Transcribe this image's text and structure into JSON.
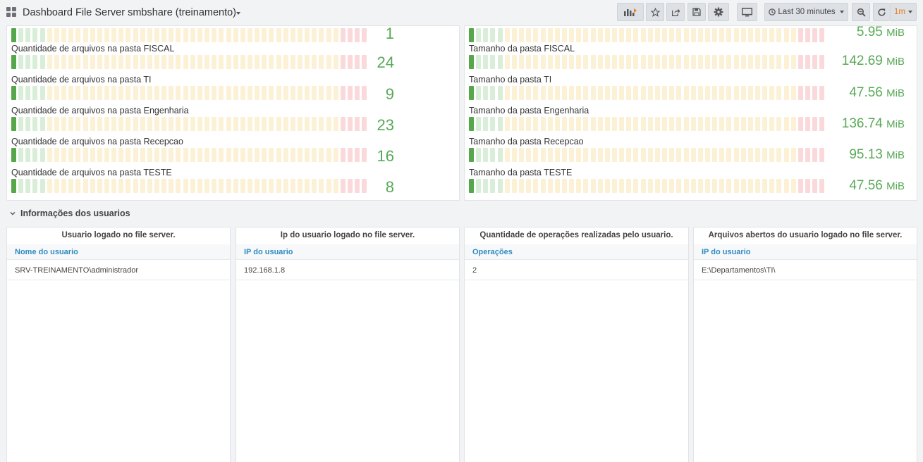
{
  "header": {
    "title": "Dashboard File Server smbshare (treinamento)",
    "time_range": "Last 30 minutes",
    "refresh_interval": "1m",
    "icons": [
      "apps-icon",
      "add-panel-icon",
      "star-icon",
      "share-icon",
      "save-icon",
      "settings-icon",
      "tv-mode-icon",
      "clock-icon",
      "zoom-out-icon",
      "refresh-icon"
    ]
  },
  "colors": {
    "value_green": "#58a956",
    "gauge_filled": "#56a64b",
    "gauge_green_empty": "#d9eed8",
    "gauge_yellow_empty": "#fcf1d5",
    "gauge_red_empty": "#fbd9db",
    "link_blue": "#2f8bbf",
    "accent_orange": "#eb7b18"
  },
  "gauge": {
    "cells": 50,
    "green_cells": 5,
    "yellow_cells": 41,
    "red_cells": 4
  },
  "files_panel": {
    "rows": [
      {
        "label": "",
        "value": "1",
        "fill_cells": 1
      },
      {
        "label": "Quantidade de arquivos na pasta FISCAL",
        "value": "24",
        "fill_cells": 1
      },
      {
        "label": "Quantidade de arquivos na pasta TI",
        "value": "9",
        "fill_cells": 1
      },
      {
        "label": "Quantidade de arquivos na pasta Engenharia",
        "value": "23",
        "fill_cells": 1
      },
      {
        "label": "Quantidade de arquivos na pasta Recepcao",
        "value": "16",
        "fill_cells": 1
      },
      {
        "label": "Quantidade de arquivos na pasta TESTE",
        "value": "8",
        "fill_cells": 1
      }
    ]
  },
  "sizes_panel": {
    "unit": "MiB",
    "rows": [
      {
        "label": "",
        "value": "5.95",
        "fill_cells": 1
      },
      {
        "label": "Tamanho da pasta FISCAL",
        "value": "142.69",
        "fill_cells": 1
      },
      {
        "label": "Tamanho da pasta TI",
        "value": "47.56",
        "fill_cells": 1
      },
      {
        "label": "Tamanho da pasta Engenharia",
        "value": "136.74",
        "fill_cells": 1
      },
      {
        "label": "Tamanho da pasta Recepcao",
        "value": "95.13",
        "fill_cells": 1
      },
      {
        "label": "Tamanho da pasta TESTE",
        "value": "47.56",
        "fill_cells": 1
      }
    ]
  },
  "users_section": {
    "title": "Informações dos usuarios",
    "tables": [
      {
        "title": "Usuario logado no file server.",
        "column": "Nome do usuario",
        "value": "SRV-TREINAMENTO\\administrador"
      },
      {
        "title": "Ip do usuario logado no file server.",
        "column": "IP do usuario",
        "value": "192.168.1.8"
      },
      {
        "title": "Quantidade de operações realizadas pelo usuario.",
        "column": "Operações",
        "value": "2"
      },
      {
        "title": "Arquivos abertos do usuario logado no file server.",
        "column": "IP do usuario",
        "value": "E:\\Departamentos\\TI\\"
      }
    ]
  }
}
